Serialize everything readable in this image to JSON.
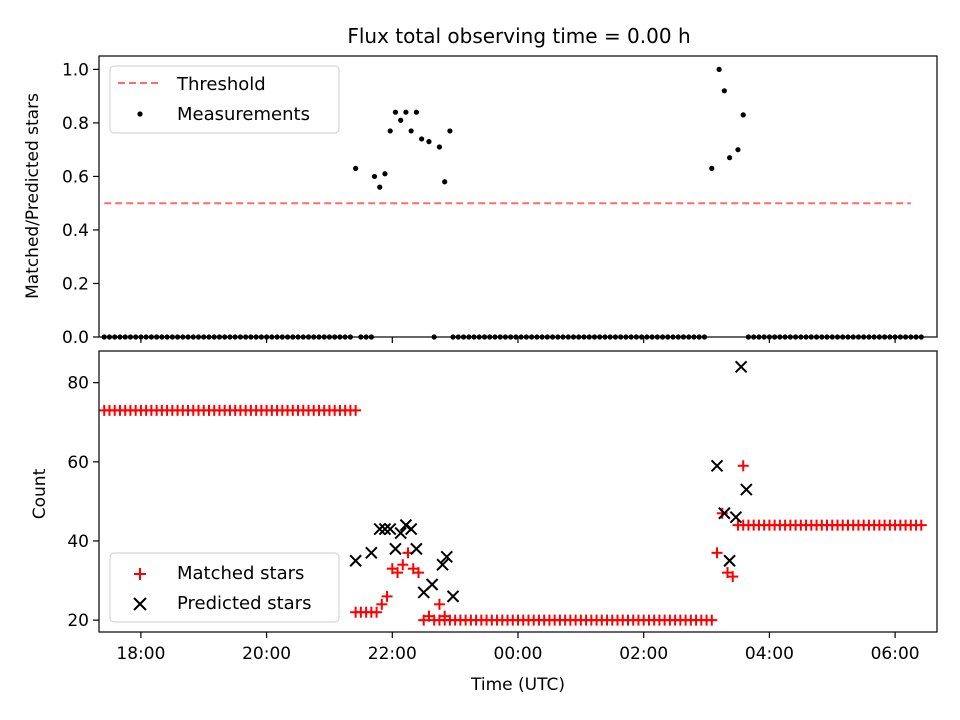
{
  "figure_title": "Flux total observing time = 0.00 h",
  "xlabel": "Time (UTC)",
  "chart_data": [
    {
      "type": "scatter",
      "ylabel": "Matched/Predicted stars",
      "xlim": [
        "17:20",
        "06:40"
      ],
      "ylim": [
        0,
        1.05
      ],
      "yticks": [
        "0.0",
        "0.2",
        "0.4",
        "0.6",
        "0.8",
        "1.0"
      ],
      "legend_position": "upper-left",
      "threshold": {
        "name": "Threshold",
        "value": 0.5,
        "x_start": "17:25",
        "x_end": "06:15",
        "color": "#ff6b6b"
      },
      "series": [
        {
          "name": "Measurements",
          "color": "#000000",
          "marker": "dot",
          "points": [
            [
              "21:25",
              0.63
            ],
            [
              "21:43",
              0.6
            ],
            [
              "21:48",
              0.56
            ],
            [
              "21:53",
              0.61
            ],
            [
              "21:58",
              0.77
            ],
            [
              "22:03",
              0.84
            ],
            [
              "22:08",
              0.81
            ],
            [
              "22:13",
              0.84
            ],
            [
              "22:18",
              0.77
            ],
            [
              "22:23",
              0.84
            ],
            [
              "22:28",
              0.74
            ],
            [
              "22:35",
              0.73
            ],
            [
              "22:45",
              0.71
            ],
            [
              "22:50",
              0.58
            ],
            [
              "22:55",
              0.77
            ],
            [
              "03:05",
              0.63
            ],
            [
              "03:12",
              1.0
            ],
            [
              "03:17",
              0.92
            ],
            [
              "03:22",
              0.67
            ],
            [
              "03:30",
              0.7
            ],
            [
              "03:35",
              0.83
            ],
            [
              "22:40",
              0.0
            ]
          ],
          "zero_segments": [
            [
              "17:25",
              "21:20"
            ],
            [
              "21:30",
              "21:40"
            ],
            [
              "22:58",
              "03:00"
            ],
            [
              "03:40",
              "06:25"
            ]
          ]
        }
      ]
    },
    {
      "type": "scatter",
      "ylabel": "Count",
      "xlim": [
        "17:20",
        "06:40"
      ],
      "ylim": [
        17,
        88
      ],
      "yticks": [
        "20",
        "40",
        "60",
        "80"
      ],
      "xticks": [
        "18:00",
        "20:00",
        "22:00",
        "00:00",
        "02:00",
        "04:00",
        "06:00"
      ],
      "legend_position": "lower-left",
      "series": [
        {
          "name": "Matched stars",
          "color": "#ff0000",
          "marker": "plus",
          "runs": [
            {
              "from": "17:25",
              "to": "21:25",
              "value": 73
            },
            {
              "from": "21:25",
              "to": "21:45",
              "value": 22
            },
            {
              "from": "22:40",
              "to": "03:05",
              "value": 20
            },
            {
              "from": "03:30",
              "to": "06:25",
              "value": 44
            }
          ],
          "points": [
            [
              "21:50",
              24
            ],
            [
              "21:55",
              26
            ],
            [
              "22:00",
              33
            ],
            [
              "22:05",
              32
            ],
            [
              "22:10",
              34
            ],
            [
              "22:15",
              37
            ],
            [
              "22:20",
              33
            ],
            [
              "22:25",
              32
            ],
            [
              "22:30",
              20
            ],
            [
              "22:35",
              21
            ],
            [
              "22:45",
              24
            ],
            [
              "22:50",
              21
            ],
            [
              "03:10",
              37
            ],
            [
              "03:15",
              47
            ],
            [
              "03:20",
              32
            ],
            [
              "03:25",
              31
            ],
            [
              "03:35",
              59
            ]
          ]
        },
        {
          "name": "Predicted stars",
          "color": "#000000",
          "marker": "x",
          "points": [
            [
              "21:25",
              35
            ],
            [
              "21:40",
              37
            ],
            [
              "21:48",
              43
            ],
            [
              "21:53",
              43
            ],
            [
              "21:58",
              43
            ],
            [
              "22:03",
              38
            ],
            [
              "22:08",
              42
            ],
            [
              "22:13",
              44
            ],
            [
              "22:18",
              43
            ],
            [
              "22:23",
              38
            ],
            [
              "22:30",
              27
            ],
            [
              "22:38",
              29
            ],
            [
              "22:48",
              34
            ],
            [
              "22:52",
              36
            ],
            [
              "22:58",
              26
            ],
            [
              "03:10",
              59
            ],
            [
              "03:17",
              47
            ],
            [
              "03:22",
              35
            ],
            [
              "03:28",
              46
            ],
            [
              "03:33",
              84
            ],
            [
              "03:38",
              53
            ]
          ]
        }
      ]
    }
  ]
}
